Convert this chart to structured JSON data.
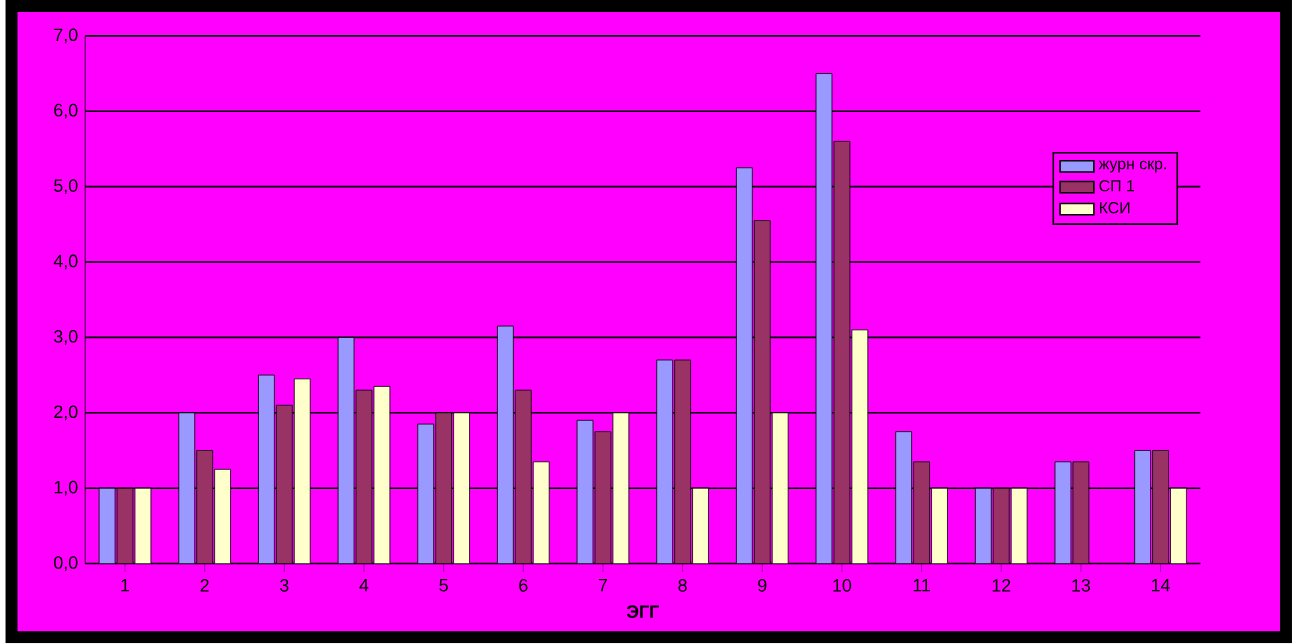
{
  "chart_data": {
    "type": "bar",
    "xlabel": "ЭГГ",
    "categories": [
      "1",
      "2",
      "3",
      "4",
      "5",
      "6",
      "7",
      "8",
      "9",
      "10",
      "11",
      "12",
      "13",
      "14"
    ],
    "series": [
      {
        "name": "журн скр.",
        "color": "#9999ff",
        "values": [
          1.0,
          2.0,
          2.5,
          3.0,
          1.85,
          3.15,
          1.9,
          2.7,
          5.25,
          6.5,
          1.75,
          1.0,
          1.35,
          1.5
        ]
      },
      {
        "name": "СП 1",
        "color": "#993366",
        "values": [
          1.0,
          1.5,
          2.1,
          2.3,
          2.0,
          2.3,
          1.75,
          2.7,
          4.55,
          5.6,
          1.35,
          1.0,
          1.35,
          1.5
        ]
      },
      {
        "name": "КСИ",
        "color": "#ffffcc",
        "values": [
          1.0,
          1.25,
          2.45,
          2.35,
          2.0,
          1.35,
          2.0,
          1.0,
          2.0,
          3.1,
          1.0,
          1.0,
          0,
          1.0
        ]
      }
    ],
    "ylim": [
      0,
      7
    ],
    "yticks": [
      {
        "value": 0,
        "label": "0,0"
      },
      {
        "value": 1,
        "label": "1,0"
      },
      {
        "value": 2,
        "label": "2,0"
      },
      {
        "value": 3,
        "label": "3,0"
      },
      {
        "value": 4,
        "label": "4,0"
      },
      {
        "value": 5,
        "label": "5,0"
      },
      {
        "value": 6,
        "label": "6,0"
      },
      {
        "value": 7,
        "label": "7,0"
      }
    ],
    "grid": "y",
    "legend": "top right"
  }
}
